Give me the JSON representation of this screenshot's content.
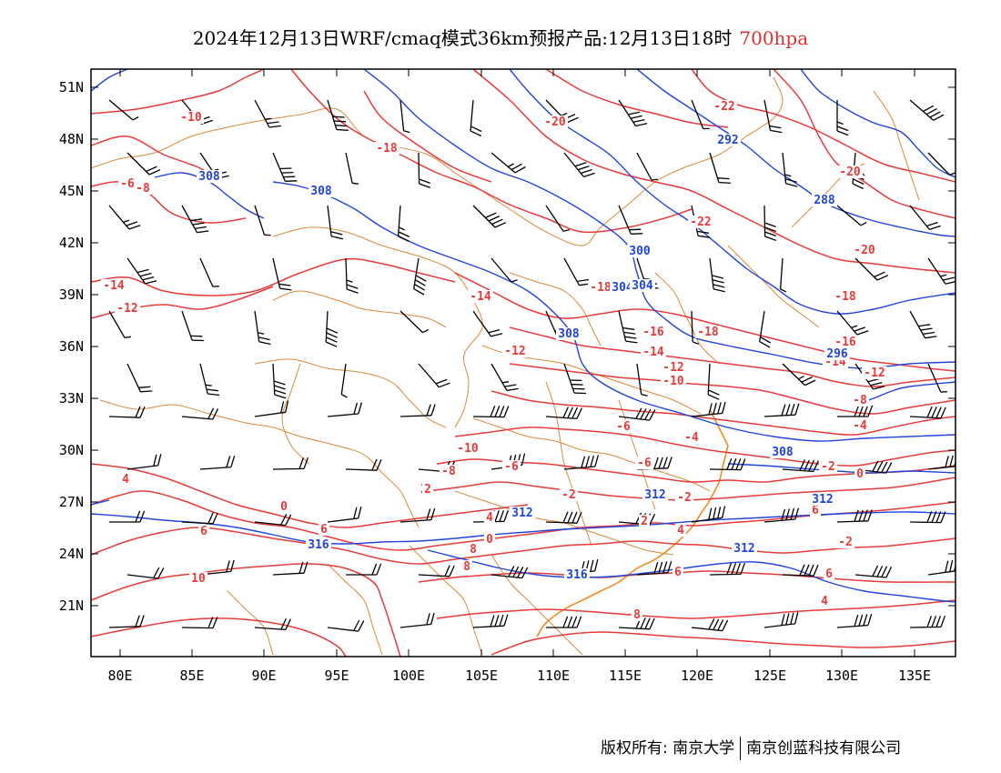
{
  "title": {
    "main": "2024年12月13日WRF/cmaq模式36km预报产品:12月13日18时",
    "level": "700hpa"
  },
  "axes": {
    "lat_labels": [
      "51N",
      "48N",
      "45N",
      "42N",
      "39N",
      "36N",
      "33N",
      "30N",
      "27N",
      "24N",
      "21N"
    ],
    "lon_labels": [
      "80E",
      "85E",
      "90E",
      "95E",
      "100E",
      "105E",
      "110E",
      "115E",
      "120E",
      "125E",
      "130E",
      "135E"
    ]
  },
  "colors": {
    "temperature": "#e83a3a",
    "geopotential": "#2244dd",
    "borders": "#d9893a",
    "coast": "#f08a20",
    "wind": "#000000"
  },
  "temperature_labels": [
    "-10",
    "-6",
    "-8",
    "-18",
    "-20",
    "-22",
    "-22",
    "-20",
    "-20",
    "-14",
    "-12",
    "-14",
    "-18",
    "-16",
    "-18",
    "-18",
    "-16",
    "-14",
    "-12",
    "-12",
    "-10",
    "-14",
    "-12",
    "-6",
    "-8",
    "-4",
    "-10",
    "-8",
    "-6",
    "-6",
    "-4",
    "-2",
    "-2",
    "0",
    "2",
    "4",
    "6",
    "2",
    "0",
    "-2",
    "0",
    "-2",
    "4",
    "6",
    "8",
    "2",
    "4",
    "6",
    "8",
    "10",
    "6",
    "8",
    "6",
    "4"
  ],
  "geopotential_labels": [
    "308",
    "308",
    "292",
    "288",
    "300",
    "304",
    "308",
    "304",
    "296",
    "308",
    "312",
    "312",
    "312",
    "316",
    "316",
    "312"
  ],
  "footer": {
    "left": "版权所有: 南京大学",
    "right": "南京创蓝科技有限公司"
  }
}
